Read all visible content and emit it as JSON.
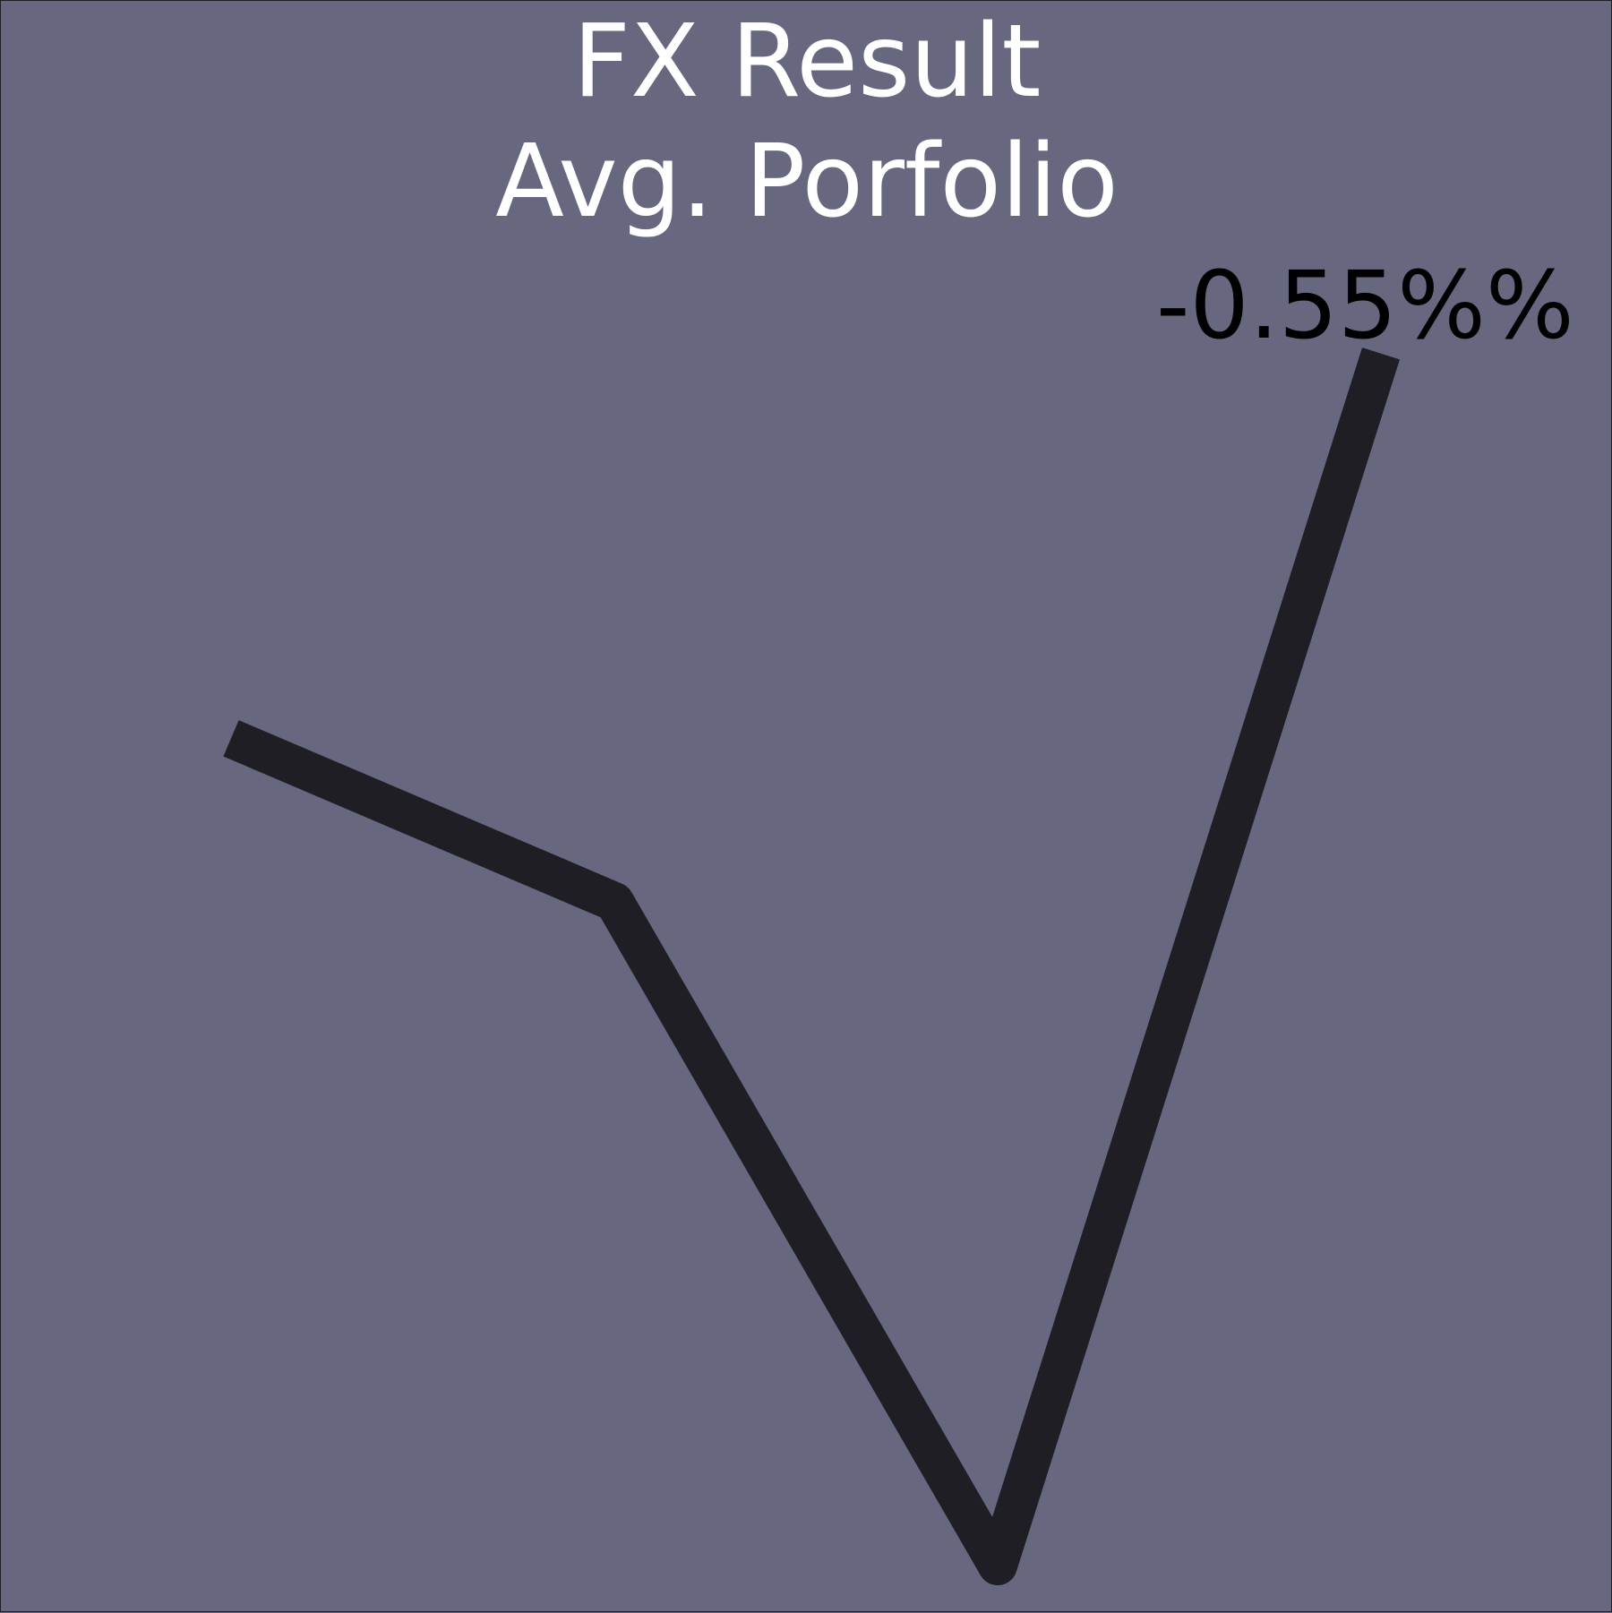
{
  "chart_data": {
    "type": "line",
    "title": [
      "FX Result",
      "Avg. Porfolio"
    ],
    "x": [
      1,
      2,
      3,
      4
    ],
    "series": [
      {
        "values": [
          -0.95,
          -1.12,
          -1.81,
          -0.55
        ],
        "color": "#1e1e24"
      }
    ],
    "value_label": "-0.55%%",
    "xlabel": "",
    "ylabel": "",
    "ylim": [
      -1.85,
      -0.5
    ],
    "grid": false,
    "background": "#676880"
  }
}
